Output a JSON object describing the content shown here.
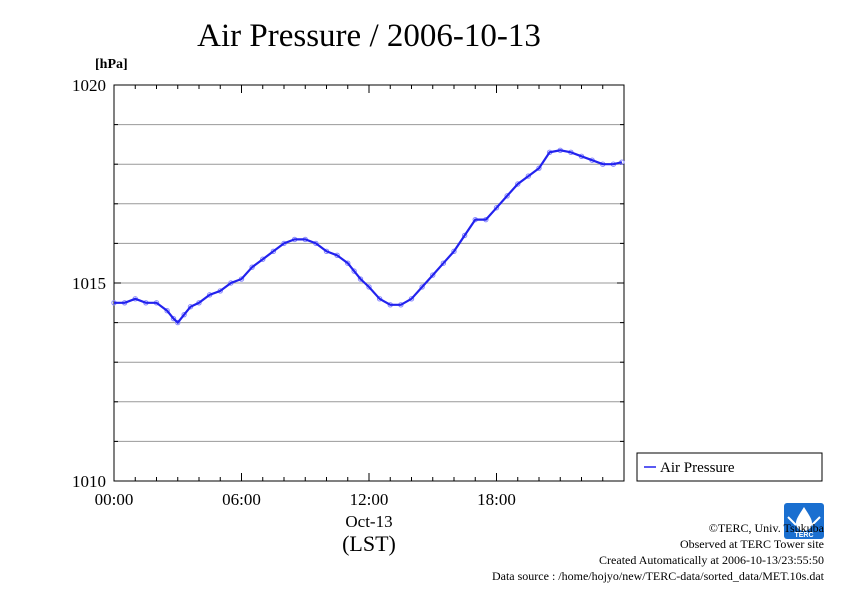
{
  "chart_data": {
    "type": "line",
    "title": "Air Pressure / 2006-10-13",
    "ylabel": "[hPa]",
    "ylim": [
      1010,
      1020
    ],
    "yticks": [
      {
        "value": 1010,
        "label": "1010"
      },
      {
        "value": 1015,
        "label": "1015"
      },
      {
        "value": 1020,
        "label": "1020"
      }
    ],
    "xlim": [
      0,
      24
    ],
    "xticks": [
      {
        "value": 0,
        "label": "00:00"
      },
      {
        "value": 6,
        "label": "06:00"
      },
      {
        "value": 12,
        "label": "12:00"
      },
      {
        "value": 18,
        "label": "18:00"
      }
    ],
    "xdate_label": "Oct-13",
    "xlabel": "(LST)",
    "grid": true,
    "legend_position": "right",
    "series": [
      {
        "name": "Air Pressure",
        "color": "#2222ee",
        "x": [
          0,
          0.5,
          1.0,
          1.5,
          2.0,
          2.5,
          2.8,
          3.0,
          3.3,
          3.6,
          4.0,
          4.5,
          5.0,
          5.5,
          6.0,
          6.5,
          7.0,
          7.5,
          8.0,
          8.5,
          9.0,
          9.5,
          10.0,
          10.5,
          11.0,
          11.3,
          11.6,
          12.0,
          12.5,
          13.0,
          13.5,
          14.0,
          14.5,
          15.0,
          15.5,
          16.0,
          16.5,
          17.0,
          17.5,
          18.0,
          18.5,
          19.0,
          19.5,
          20.0,
          20.5,
          21.0,
          21.5,
          22.0,
          22.5,
          23.0,
          23.5,
          23.9
        ],
        "values": [
          1014.5,
          1014.5,
          1014.6,
          1014.5,
          1014.5,
          1014.3,
          1014.1,
          1014.0,
          1014.2,
          1014.4,
          1014.5,
          1014.7,
          1014.8,
          1015.0,
          1015.1,
          1015.4,
          1015.6,
          1015.8,
          1016.0,
          1016.1,
          1016.1,
          1016.0,
          1015.8,
          1015.7,
          1015.5,
          1015.3,
          1015.1,
          1014.9,
          1014.6,
          1014.45,
          1014.45,
          1014.6,
          1014.9,
          1015.2,
          1015.5,
          1015.8,
          1016.2,
          1016.6,
          1016.6,
          1016.9,
          1017.2,
          1017.5,
          1017.7,
          1017.9,
          1018.3,
          1018.35,
          1018.3,
          1018.2,
          1018.1,
          1018.0,
          1018.0,
          1018.05
        ]
      }
    ]
  },
  "credits": {
    "copyright": "©TERC, Univ. Tsukuba",
    "observed": "Observed at TERC Tower site",
    "created": "Created Automatically at 2006-10-13/23:55:50",
    "source": "Data source : /home/hojyo/new/TERC-data/sorted_data/MET.10s.dat"
  },
  "logo": {
    "text": "TERC",
    "color": "#1a6fd0"
  }
}
